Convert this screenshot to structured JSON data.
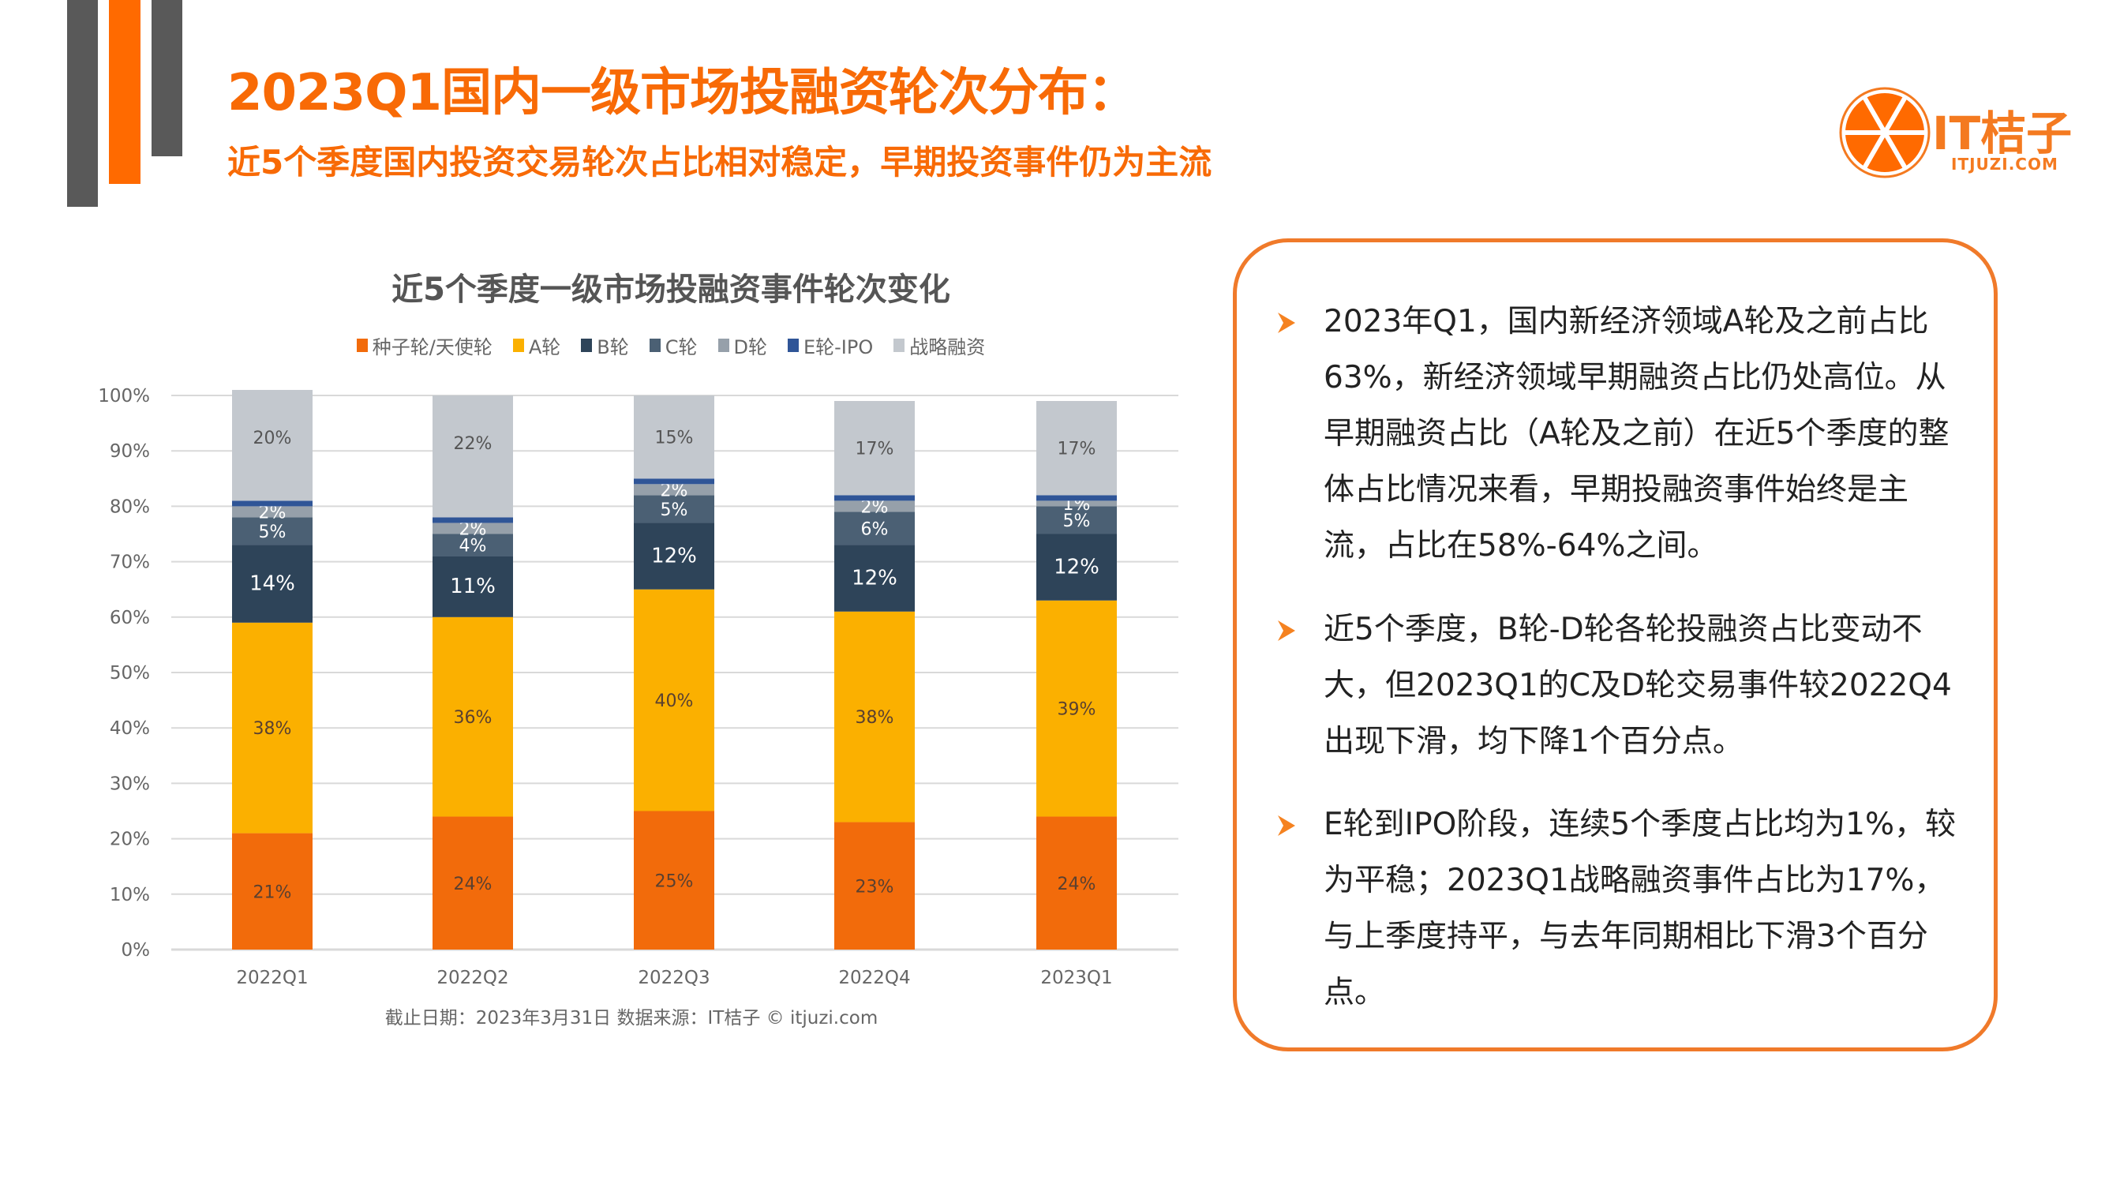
{
  "header": {
    "title": "2023Q1国内一级市场投融资轮次分布：",
    "subtitle": "近5个季度国内投资交易轮次占比相对稳定，早期投资事件仍为主流"
  },
  "logo": {
    "name": "IT桔子",
    "domain": "ITJUZI.COM"
  },
  "colors": {
    "accent": "#f86a06",
    "gray_bar": "#595959"
  },
  "chart_data": {
    "type": "bar",
    "stacked": true,
    "title": "近5个季度一级市场投融资事件轮次变化",
    "categories": [
      "2022Q1",
      "2022Q2",
      "2022Q3",
      "2022Q4",
      "2023Q1"
    ],
    "ylim": [
      0,
      100
    ],
    "yticks": [
      "0%",
      "10%",
      "20%",
      "30%",
      "40%",
      "50%",
      "60%",
      "70%",
      "80%",
      "90%",
      "100%"
    ],
    "grid": true,
    "legend_position": "top",
    "series": [
      {
        "name": "种子轮/天使轮",
        "color": "#f26b0b",
        "values": [
          21,
          24,
          25,
          23,
          24
        ]
      },
      {
        "name": "A轮",
        "color": "#fbb000",
        "values": [
          38,
          36,
          40,
          38,
          39
        ]
      },
      {
        "name": "B轮",
        "color": "#2e4459",
        "values": [
          14,
          11,
          12,
          12,
          12
        ]
      },
      {
        "name": "C轮",
        "color": "#4b6074",
        "values": [
          5,
          4,
          5,
          6,
          5
        ]
      },
      {
        "name": "D轮",
        "color": "#96a0aa",
        "values": [
          2,
          2,
          2,
          2,
          1
        ]
      },
      {
        "name": "E轮-IPO",
        "color": "#2f5597",
        "values": [
          1,
          1,
          1,
          1,
          1
        ]
      },
      {
        "name": "战略融资",
        "color": "#c3c8ce",
        "values": [
          20,
          22,
          15,
          17,
          17
        ]
      }
    ],
    "footnote": "截止日期：2023年3月31日    数据来源：IT桔子 © itjuzi.com"
  },
  "notes": [
    {
      "lines": [
        "2023年Q1，国内新经济领域A轮及之前占比",
        "63%，新经济领域早期融资占比仍处高位。从",
        "早期融资占比（A轮及之前）在近5个季度的整",
        "体占比情况来看，早期投融资事件始终是主",
        "流，占比在58%-64%之间。"
      ]
    },
    {
      "lines": [
        "近5个季度，B轮-D轮各轮投融资占比变动不",
        "大，但2023Q1的C及D轮交易事件较2022Q4",
        "出现下滑，均下降1个百分点。"
      ]
    },
    {
      "lines": [
        "E轮到IPO阶段，连续5个季度占比均为1%，较",
        "为平稳；2023Q1战略融资事件占比为17%，",
        "与上季度持平，与去年同期相比下滑3个百分",
        "点。"
      ]
    }
  ]
}
